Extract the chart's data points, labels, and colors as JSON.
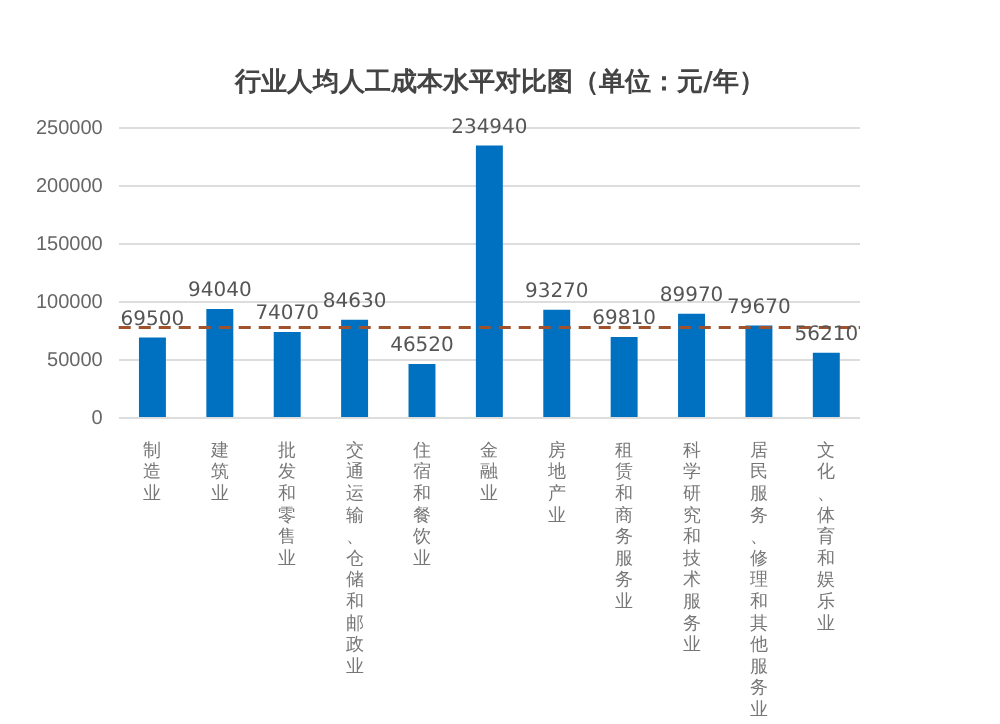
{
  "chart_data": {
    "type": "bar",
    "title": "行业人均人工成本水平对比图（单位：元/年）",
    "categories": [
      "制造业",
      "建筑业",
      "批发和零售业",
      "交通运输、仓储和邮政业",
      "住宿和餐饮业",
      "金融业",
      "房地产业",
      "租赁和商务服务业",
      "科学研究和技术服务业",
      "居民服务、修理和其他服务业",
      "文化、体育和娱乐业"
    ],
    "series": [
      {
        "color": "#0070c0",
        "values": [
          69500,
          94040,
          74070,
          84630,
          46520,
          234940,
          93270,
          69810,
          89970,
          79670,
          56210
        ]
      }
    ],
    "ylim": [
      0,
      250000
    ],
    "yticks": [
      0,
      50000,
      100000,
      150000,
      200000,
      250000
    ],
    "grid": "y",
    "legend": false,
    "data_labels": true,
    "ref_lines": [
      {
        "axis": "y",
        "value": 78000,
        "color": "#a0522d",
        "line_style": "dashed"
      }
    ]
  }
}
